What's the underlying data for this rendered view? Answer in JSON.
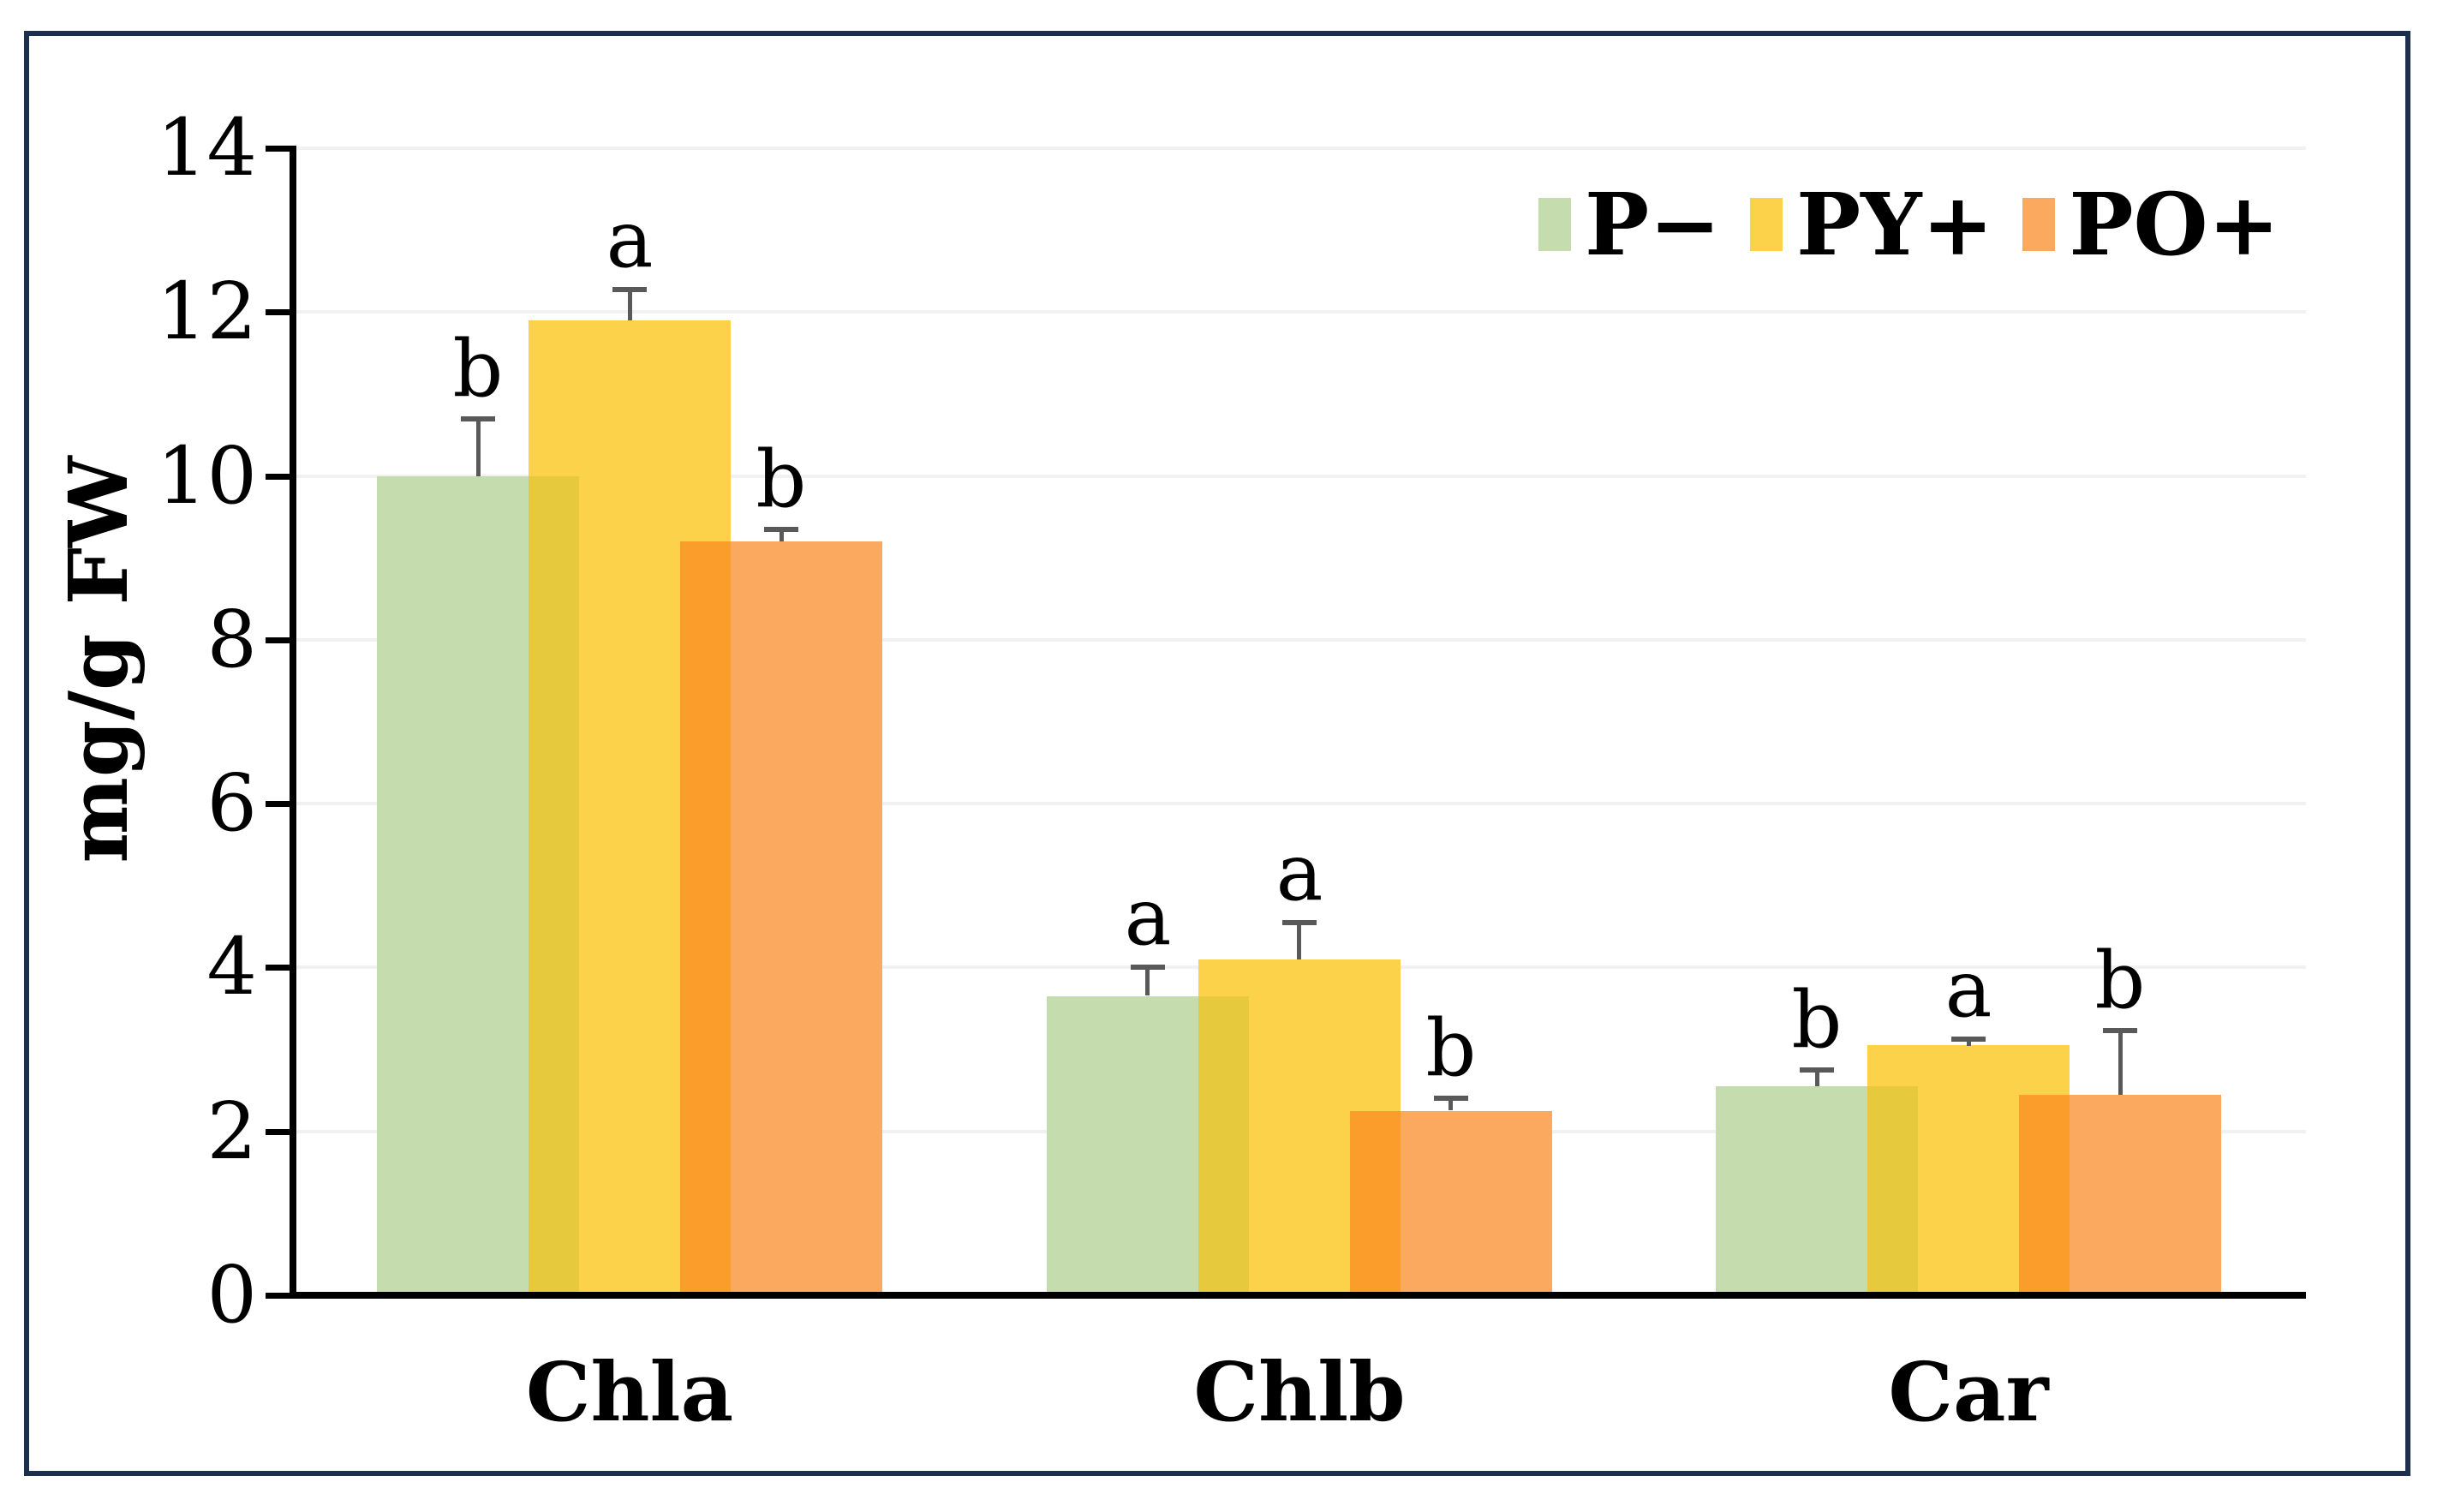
{
  "chart_data": {
    "type": "bar",
    "title": "",
    "xlabel": "",
    "ylabel": "mg/g FW",
    "ylim": [
      0,
      14
    ],
    "yticks": [
      0,
      2,
      4,
      6,
      8,
      10,
      12,
      14
    ],
    "grid": true,
    "gridline_color": "#f1f1f1",
    "legend_position": "top-right",
    "categories": [
      "Chla",
      "Chlb",
      "Car"
    ],
    "series": [
      {
        "name": "P−",
        "color": "#c5dcaf",
        "values": [
          10.0,
          3.65,
          2.55
        ],
        "errors": [
          0.7,
          0.35,
          0.2
        ],
        "letters": [
          "b",
          "a",
          "b"
        ]
      },
      {
        "name": "PY+",
        "color": "#fdd24b",
        "overlap_color": "#e6c93d",
        "values": [
          11.9,
          4.1,
          3.05
        ],
        "errors": [
          0.38,
          0.45,
          0.08
        ],
        "letters": [
          "a",
          "a",
          "a"
        ]
      },
      {
        "name": "PO+",
        "color": "#fba95e",
        "overlap_color": "#fa9d2a",
        "values": [
          9.2,
          2.25,
          2.45
        ],
        "errors": [
          0.15,
          0.15,
          0.78
        ],
        "letters": [
          "b",
          "b",
          "b"
        ]
      }
    ],
    "error_bar_color": "#595959",
    "axis_color": "#000000",
    "border_color": "#1e2f4d"
  }
}
